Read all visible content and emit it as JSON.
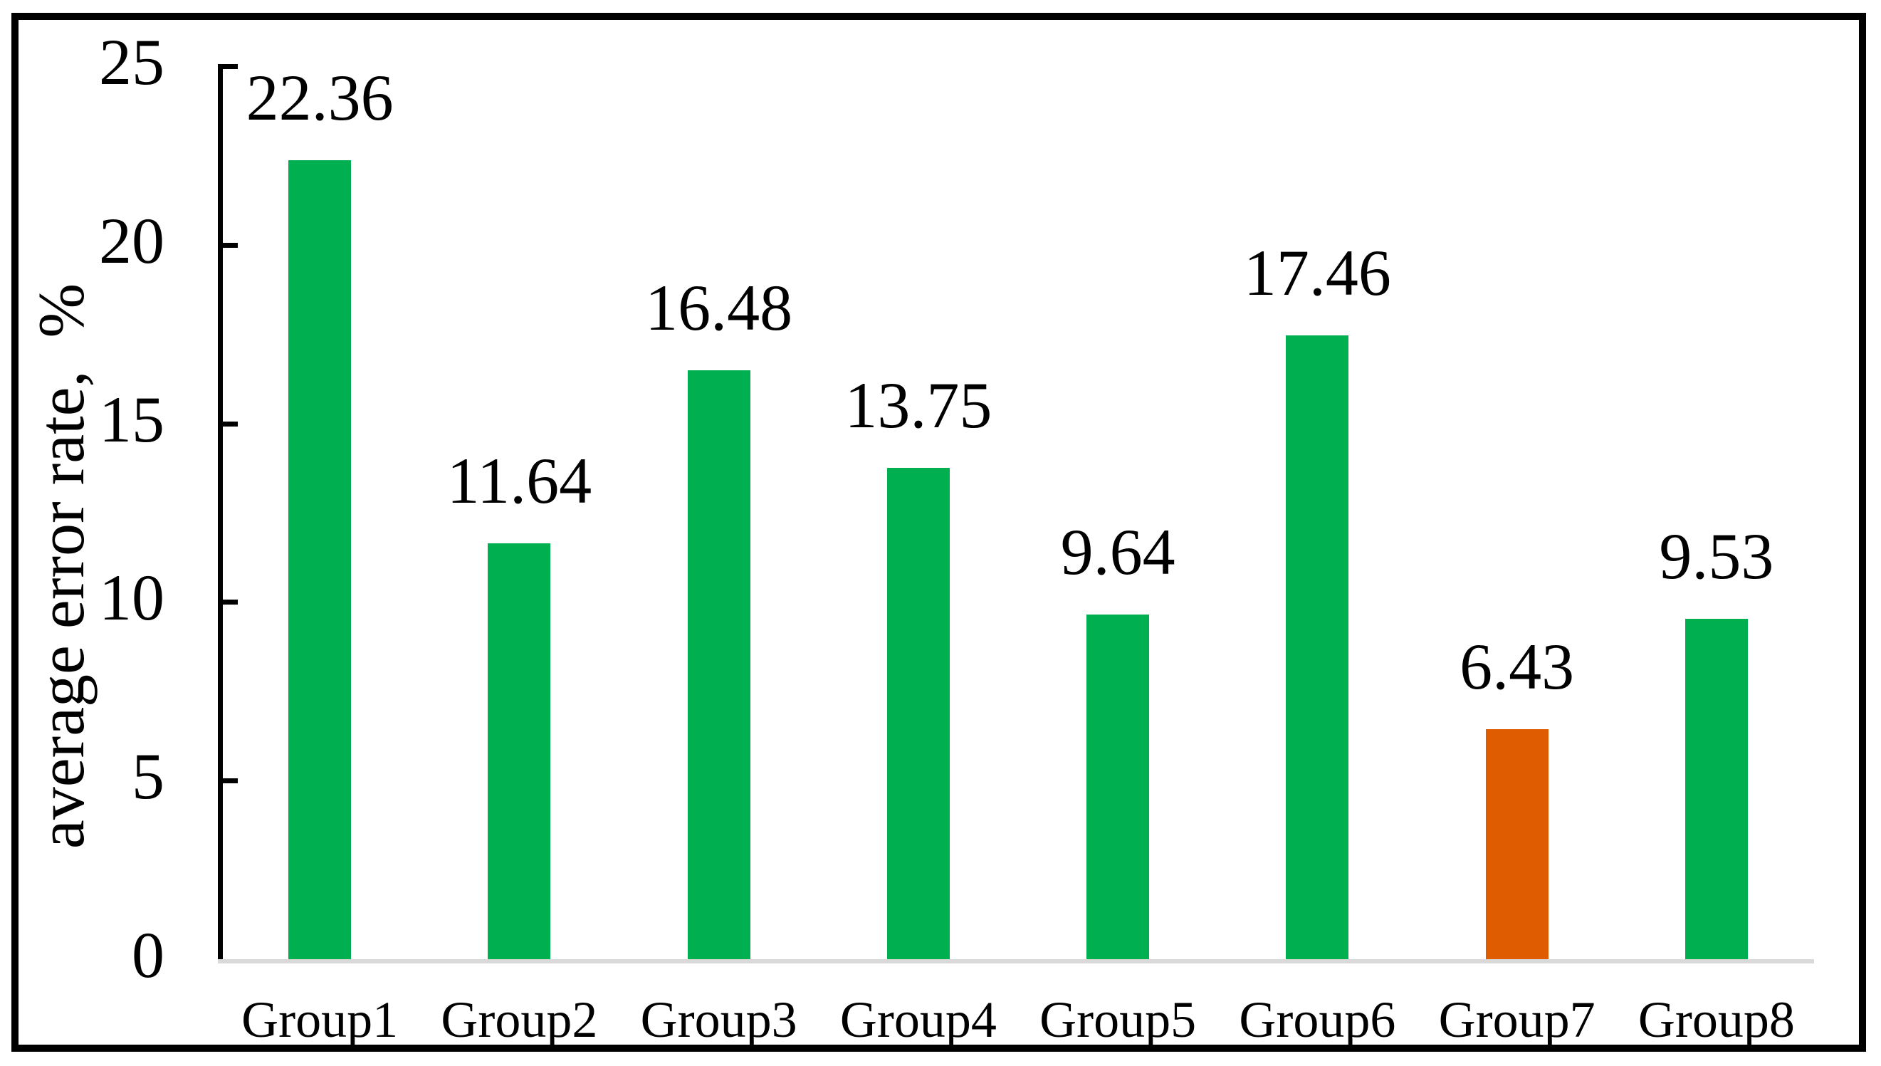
{
  "chart_data": {
    "type": "bar",
    "title": "",
    "categories": [
      "Group1",
      "Group2",
      "Group3",
      "Group4",
      "Group5",
      "Group6",
      "Group7",
      "Group8"
    ],
    "values": [
      22.36,
      11.64,
      16.48,
      13.75,
      9.64,
      17.46,
      6.43,
      9.53
    ],
    "value_labels": [
      "22.36",
      "11.64",
      "16.48",
      "13.75",
      "9.64",
      "17.46",
      "6.43",
      "9.53"
    ],
    "bar_colors": [
      "#00B050",
      "#00B050",
      "#00B050",
      "#00B050",
      "#00B050",
      "#00B050",
      "#E05C00",
      "#00B050"
    ],
    "xlabel": "",
    "ylabel": "average error rate,  %",
    "ylim": [
      0,
      25
    ],
    "yticks": [
      0,
      5,
      10,
      15,
      20,
      25
    ],
    "ytick_labels": [
      "0",
      "5",
      "10",
      "15",
      "20",
      "25"
    ],
    "grid": false,
    "legend": "none",
    "colors": {
      "bar_default": "#00B050",
      "bar_highlight": "#E05C00",
      "axis_line": "#000000",
      "baseline": "#D9D9D9",
      "frame_border": "#000000",
      "text": "#000000"
    }
  }
}
